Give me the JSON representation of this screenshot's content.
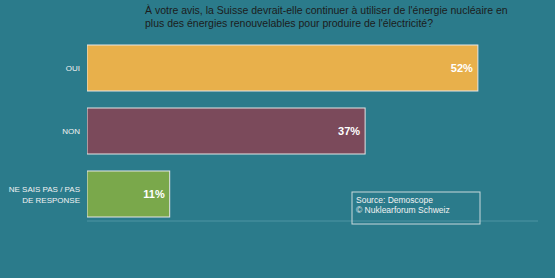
{
  "chart_data": {
    "type": "bar",
    "orientation": "horizontal",
    "title": "À votre avis, la Suisse devrait-elle continuer à utiliser de l'énergie nucléaire en plus des énergies renouvelables pour produire de l'électricité?",
    "categories": [
      "OUI",
      "NON",
      "NE SAIS PAS / PAS DE RESPONSE"
    ],
    "values": [
      52,
      37,
      11
    ],
    "value_labels": [
      "52%",
      "37%",
      "11%"
    ],
    "colors": [
      "#e8b04b",
      "#7b4a5b",
      "#7aa84b"
    ],
    "xlim": [
      0,
      60
    ],
    "tick_labels": false,
    "grid": false,
    "data_labels": true,
    "annotations": [
      "Source:  Demoscope",
      "© Nuklearforum  Schweiz"
    ]
  }
}
